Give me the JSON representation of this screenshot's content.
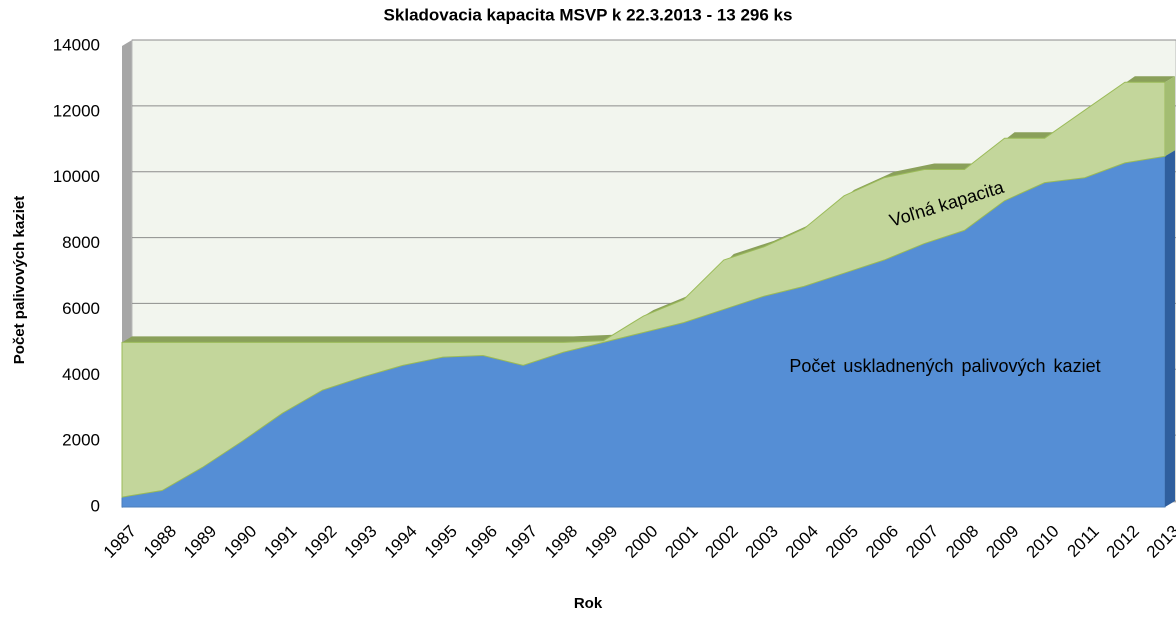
{
  "chart_data": {
    "type": "area",
    "stacked": true,
    "title": "Skladovacia kapacita MSVP k 22.3.2013 - 13 296 ks",
    "xlabel": "Rok",
    "ylabel": "Počet palivových kaziet",
    "x": [
      1987,
      1988,
      1989,
      1990,
      1991,
      1992,
      1993,
      1994,
      1995,
      1996,
      1997,
      1998,
      1999,
      2000,
      2001,
      2002,
      2003,
      2004,
      2005,
      2006,
      2007,
      2008,
      2009,
      2010,
      2011,
      2012,
      2013
    ],
    "series": [
      {
        "name": "Počet uskladnených palivových kaziet",
        "color": "#558ed5",
        "values": [
          300,
          500,
          1200,
          2000,
          2850,
          3550,
          3950,
          4300,
          4550,
          4600,
          4300,
          4700,
          5000,
          5300,
          5600,
          6000,
          6400,
          6700,
          7100,
          7500,
          8000,
          8400,
          9300,
          9850,
          10000,
          10450,
          10650
        ]
      },
      {
        "name": "Voľná kapacita",
        "color": "#c3d69b",
        "values": [
          4700,
          4500,
          3800,
          3000,
          2150,
          1450,
          1050,
          700,
          450,
          400,
          700,
          300,
          50,
          500,
          700,
          1500,
          1500,
          1750,
          2350,
          2500,
          2250,
          1850,
          1900,
          1350,
          2050,
          2450,
          2250
        ]
      }
    ],
    "ylim": [
      0,
      14000
    ],
    "yticks": [
      0,
      2000,
      4000,
      6000,
      8000,
      10000,
      12000,
      14000
    ],
    "grid": true
  }
}
